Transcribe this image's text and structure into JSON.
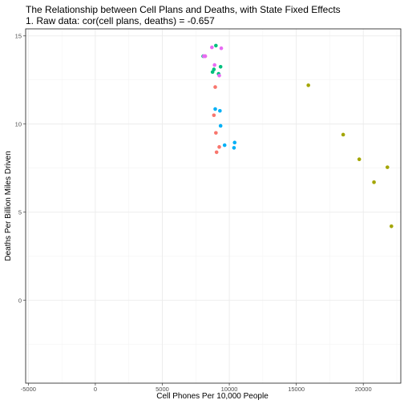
{
  "chart_data": {
    "type": "scatter",
    "title": "The Relationship between Cell Plans and Deaths, with State Fixed Effects",
    "subtitle": "1. Raw data: cor(cell plans, deaths) = -0.657",
    "xlabel": "Cell Phones Per 10,000 People",
    "ylabel": "Deaths Per Billion Miles Driven",
    "xlim": [
      -5200,
      22800
    ],
    "ylim": [
      -4.7,
      15.4
    ],
    "x_ticks": [
      -5000,
      0,
      5000,
      10000,
      15000,
      20000
    ],
    "x_tick_labels": [
      "-5000",
      "0",
      "5000",
      "10000",
      "15000",
      "20000"
    ],
    "y_ticks": [
      0,
      5,
      10,
      15
    ],
    "y_tick_labels": [
      "0",
      "5",
      "10",
      "15"
    ],
    "grid": true,
    "legend": "none",
    "colors": {
      "red": "#F8766D",
      "olive": "#A3A500",
      "green": "#00BF7D",
      "blue": "#00B0F6",
      "magenta": "#E76BF3"
    },
    "series": [
      {
        "color": "#F8766D",
        "points": [
          [
            8950,
            12.1
          ],
          [
            8850,
            10.5
          ],
          [
            9000,
            9.5
          ],
          [
            9250,
            8.7
          ],
          [
            9050,
            8.4
          ],
          [
            8200,
            13.85
          ]
        ]
      },
      {
        "color": "#A3A500",
        "points": [
          [
            15900,
            12.2
          ],
          [
            18500,
            9.4
          ],
          [
            19700,
            8.0
          ],
          [
            20800,
            6.7
          ],
          [
            21800,
            7.55
          ],
          [
            22100,
            4.2
          ]
        ]
      },
      {
        "color": "#00BF7D",
        "points": [
          [
            9000,
            14.45
          ],
          [
            9350,
            13.25
          ],
          [
            8850,
            13.1
          ],
          [
            8750,
            12.95
          ],
          [
            9200,
            12.85
          ],
          [
            8050,
            13.85
          ]
        ]
      },
      {
        "color": "#00B0F6",
        "points": [
          [
            8950,
            10.85
          ],
          [
            9300,
            10.75
          ],
          [
            9350,
            9.9
          ],
          [
            9650,
            8.8
          ],
          [
            10400,
            8.95
          ],
          [
            10350,
            8.65
          ]
        ]
      },
      {
        "color": "#E76BF3",
        "points": [
          [
            8700,
            14.35
          ],
          [
            9400,
            14.3
          ],
          [
            8200,
            13.85
          ],
          [
            8900,
            13.35
          ],
          [
            9250,
            12.75
          ],
          [
            8100,
            13.85
          ]
        ]
      }
    ]
  }
}
